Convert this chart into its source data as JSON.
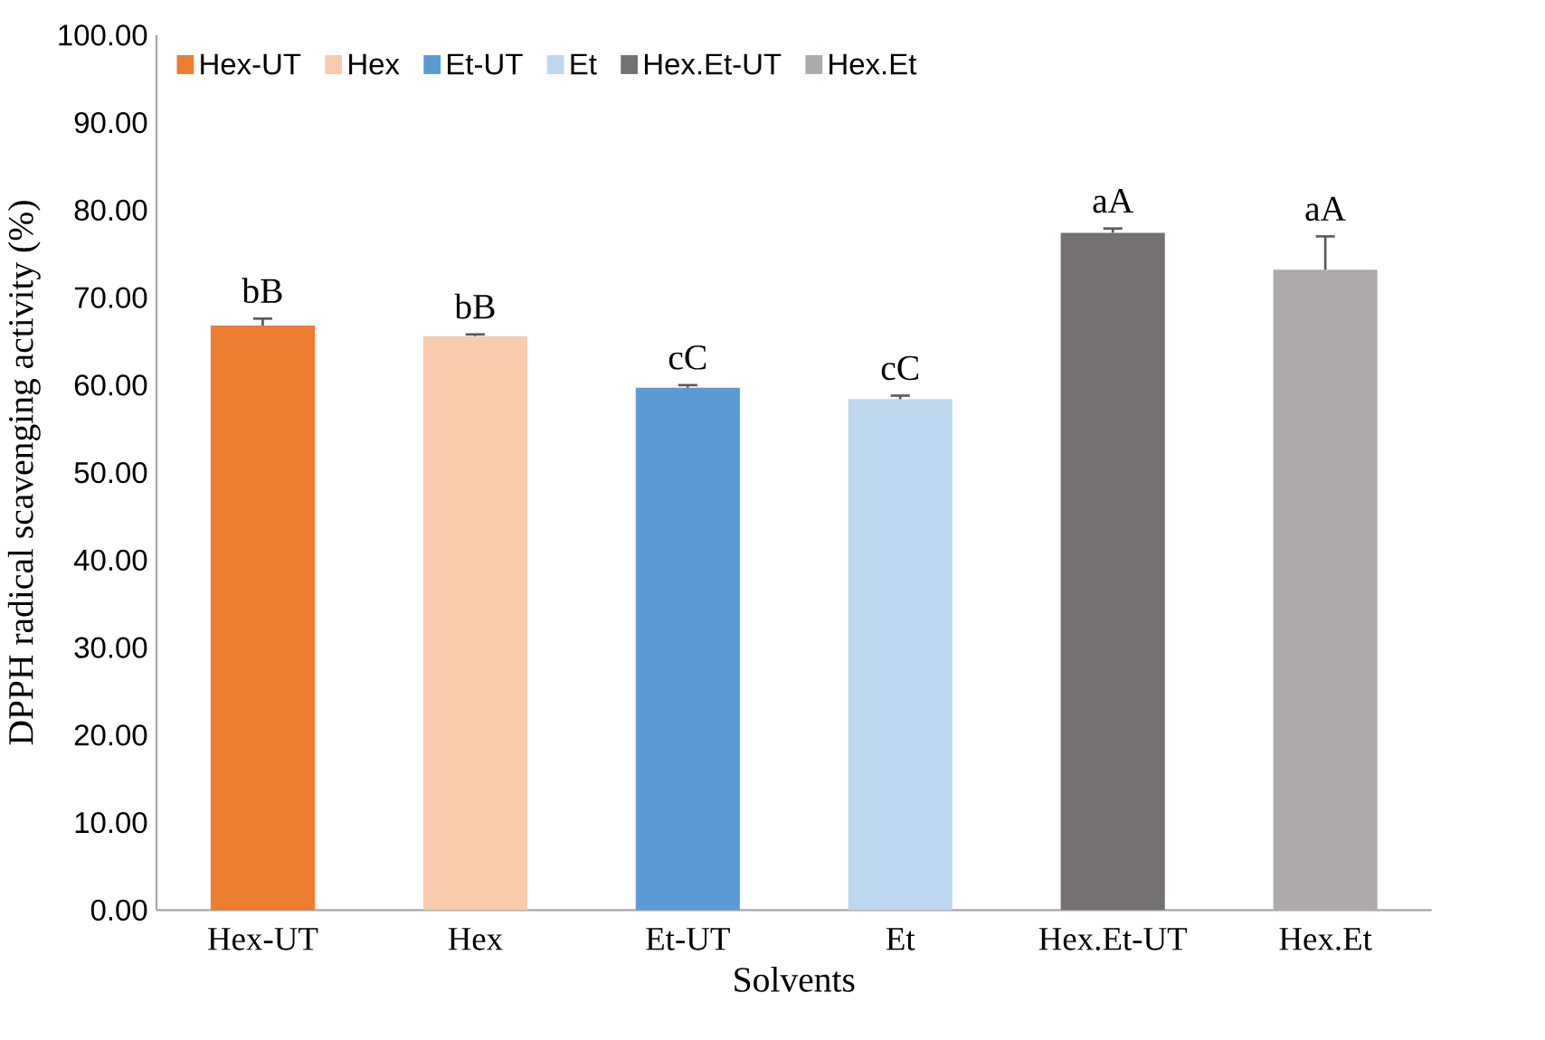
{
  "chart_data": {
    "type": "bar",
    "xlabel": "Solvents",
    "ylabel": "DPPH radical scavenging activity (%)",
    "categories": [
      "Hex-UT",
      "Hex",
      "Et-UT",
      "Et",
      "Hex.Et-UT",
      "Hex.Et"
    ],
    "series": [
      {
        "name": "Hex-UT",
        "color": "#ed7d31",
        "values": [
          66.8,
          null,
          null,
          null,
          null,
          null
        ],
        "errors": [
          0.8,
          null,
          null,
          null,
          null,
          null
        ],
        "value_labels": [
          "bB",
          null,
          null,
          null,
          null,
          null
        ]
      },
      {
        "name": "Hex",
        "color": "#f8cbad",
        "values": [
          null,
          65.6,
          null,
          null,
          null,
          null
        ],
        "errors": [
          null,
          0.2,
          null,
          null,
          null,
          null
        ],
        "value_labels": [
          null,
          "bB",
          null,
          null,
          null,
          null
        ]
      },
      {
        "name": "Et-UT",
        "color": "#5b9bd5",
        "values": [
          null,
          null,
          59.7,
          null,
          null,
          null
        ],
        "errors": [
          null,
          null,
          0.3,
          null,
          null,
          null
        ],
        "value_labels": [
          null,
          null,
          "cC",
          null,
          null,
          null
        ]
      },
      {
        "name": "Et",
        "color": "#bdd7ee",
        "values": [
          null,
          null,
          null,
          58.4,
          null,
          null
        ],
        "errors": [
          null,
          null,
          null,
          0.4,
          null,
          null
        ],
        "value_labels": [
          null,
          null,
          null,
          "cC",
          null,
          null
        ]
      },
      {
        "name": "Hex.Et-UT",
        "color": "#767171",
        "values": [
          null,
          null,
          null,
          null,
          77.4,
          null
        ],
        "errors": [
          null,
          null,
          null,
          null,
          0.5,
          null
        ],
        "value_labels": [
          null,
          null,
          null,
          null,
          "aA",
          null
        ]
      },
      {
        "name": "Hex.Et",
        "color": "#aeaaaa",
        "values": [
          null,
          null,
          null,
          null,
          null,
          73.2
        ],
        "errors": [
          null,
          null,
          null,
          null,
          null,
          3.8
        ],
        "value_labels": [
          null,
          null,
          null,
          null,
          null,
          "aA"
        ]
      }
    ],
    "ylim": [
      0,
      100
    ],
    "yticks": [
      {
        "value": 0,
        "label": "0.00"
      },
      {
        "value": 10,
        "label": "10.00"
      },
      {
        "value": 20,
        "label": "20.00"
      },
      {
        "value": 30,
        "label": "30.00"
      },
      {
        "value": 40,
        "label": "40.00"
      },
      {
        "value": 50,
        "label": "50.00"
      },
      {
        "value": 60,
        "label": "60.00"
      },
      {
        "value": 70,
        "label": "70.00"
      },
      {
        "value": 80,
        "label": "80.00"
      },
      {
        "value": 90,
        "label": "90.00"
      },
      {
        "value": 100,
        "label": "100.00"
      }
    ],
    "grid": false,
    "legend": "top left"
  }
}
